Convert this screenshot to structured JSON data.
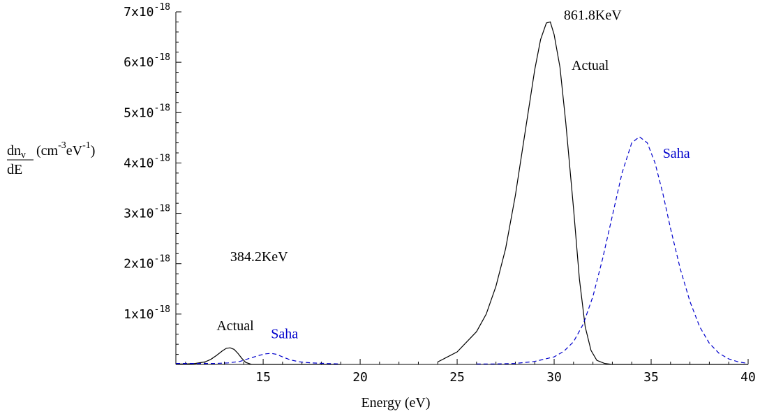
{
  "chart_data": {
    "type": "line",
    "xlabel": "Energy (eV)",
    "ylabel": {
      "numerator": "dn",
      "numerator_sub": "ν",
      "denominator": "dE",
      "unit_open": "(cm",
      "unit_exp1": "-3",
      "unit_mid": "eV",
      "unit_exp2": "-1",
      "unit_close": ")"
    },
    "xlim": [
      10.5,
      40
    ],
    "ylim": [
      0,
      7e-18
    ],
    "x_ticks": [
      15,
      20,
      25,
      30,
      35,
      40
    ],
    "x_tick_labels": [
      "15",
      "20",
      "25",
      "30",
      "35",
      "40"
    ],
    "y_ticks": [
      1e-18,
      2e-18,
      3e-18,
      4e-18,
      5e-18,
      6e-18,
      7e-18
    ],
    "y_tick_labels": [
      {
        "mantissa": "1x10",
        "exp": "-18"
      },
      {
        "mantissa": "2x10",
        "exp": "-18"
      },
      {
        "mantissa": "3x10",
        "exp": "-18"
      },
      {
        "mantissa": "4x10",
        "exp": "-18"
      },
      {
        "mantissa": "5x10",
        "exp": "-18"
      },
      {
        "mantissa": "6x10",
        "exp": "-18"
      },
      {
        "mantissa": "7x10",
        "exp": "-18"
      }
    ],
    "grid": false,
    "legend": "none",
    "series": [
      {
        "name": "Actual",
        "color": "#000000",
        "style": "solid",
        "x": [
          10.5,
          11.0,
          11.5,
          12.0,
          12.3,
          12.6,
          12.9,
          13.1,
          13.3,
          13.5,
          13.7,
          13.9,
          14.1,
          14.4,
          14.8,
          15.5,
          16.5,
          17.5,
          18.5,
          19.0
        ],
        "y": [
          1e-20,
          1e-20,
          2e-20,
          5e-20,
          1e-19,
          1.8e-19,
          2.7e-19,
          3.2e-19,
          3.3e-19,
          3e-19,
          2.2e-19,
          1.2e-19,
          4e-20,
          0.0,
          0.0,
          0.0,
          0.0,
          0.0,
          0.0,
          0.0
        ]
      },
      {
        "name": "Saha",
        "color": "#0000cc",
        "style": "dashed",
        "x": [
          10.5,
          11.5,
          12.5,
          13.2,
          13.8,
          14.3,
          14.8,
          15.1,
          15.4,
          15.7,
          16.0,
          16.4,
          16.9,
          17.5,
          18.2,
          19.0
        ],
        "y": [
          2e-20,
          2e-20,
          2e-20,
          3e-20,
          6e-20,
          1.2e-19,
          1.8e-19,
          2.1e-19,
          2.2e-19,
          2e-19,
          1.5e-19,
          9e-20,
          5e-20,
          3e-20,
          2e-20,
          1e-20
        ]
      },
      {
        "name": "Actual",
        "color": "#000000",
        "style": "solid",
        "x": [
          24.0,
          25.0,
          26.0,
          26.5,
          27.0,
          27.5,
          28.0,
          28.5,
          29.0,
          29.3,
          29.6,
          29.8,
          30.0,
          30.3,
          30.6,
          31.0,
          31.3,
          31.6,
          31.9,
          32.2,
          32.6,
          33.0,
          34.0,
          36.0,
          40.0
        ],
        "y": [
          5e-20,
          2.5e-19,
          6.5e-19,
          1e-18,
          1.55e-18,
          2.3e-18,
          3.35e-18,
          4.6e-18,
          5.85e-18,
          6.45e-18,
          6.78e-18,
          6.8e-18,
          6.55e-18,
          5.9e-18,
          4.8e-18,
          3.1e-18,
          1.7e-18,
          7.5e-19,
          2.8e-19,
          8e-20,
          2e-20,
          0.0,
          0.0,
          0.0,
          0.0
        ]
      },
      {
        "name": "Saha",
        "color": "#0000cc",
        "style": "dashed",
        "x": [
          26.0,
          27.0,
          28.0,
          29.0,
          30.0,
          30.5,
          31.0,
          31.5,
          32.0,
          32.5,
          33.0,
          33.5,
          34.0,
          34.4,
          34.8,
          35.2,
          35.6,
          36.0,
          36.5,
          37.0,
          37.5,
          38.0,
          38.5,
          39.0,
          39.5,
          40.0
        ],
        "y": [
          1e-20,
          1e-20,
          2e-20,
          6e-20,
          1.5e-19,
          2.6e-19,
          4.5e-19,
          8e-19,
          1.35e-18,
          2.1e-18,
          2.95e-18,
          3.8e-18,
          4.4e-18,
          4.52e-18,
          4.4e-18,
          4e-18,
          3.4e-18,
          2.7e-18,
          1.9e-18,
          1.25e-18,
          7.5e-19,
          4.2e-19,
          2.2e-19,
          1.1e-19,
          5e-20,
          2e-20
        ]
      }
    ],
    "annotations": [
      {
        "text": "861.8KeV",
        "x": 30.5,
        "y": 6.85e-18,
        "color": "#000000"
      },
      {
        "text": "Actual",
        "x": 30.9,
        "y": 5.85e-18,
        "color": "#000000"
      },
      {
        "text": "Saha",
        "x": 35.6,
        "y": 4.1e-18,
        "color": "#0000cc"
      },
      {
        "text": "384.2KeV",
        "x": 13.3,
        "y": 2.05e-18,
        "color": "#000000"
      },
      {
        "text": "Actual",
        "x": 12.6,
        "y": 6.8e-19,
        "color": "#000000"
      },
      {
        "text": "Saha",
        "x": 15.4,
        "y": 5.2e-19,
        "color": "#0000cc"
      }
    ]
  }
}
